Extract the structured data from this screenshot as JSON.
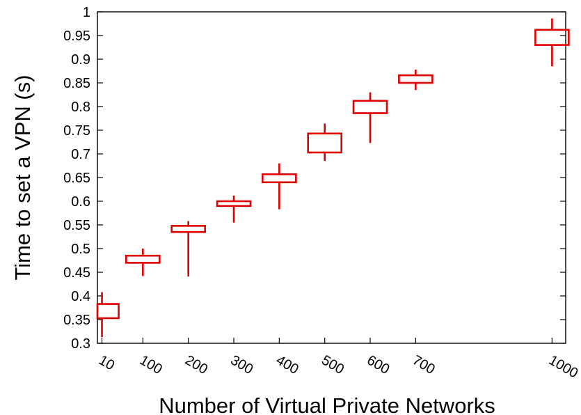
{
  "chart_data": {
    "type": "box",
    "xlabel": "Number of Virtual Private Networks",
    "ylabel": "Time to set a VPN (s)",
    "ylim": [
      0.3,
      1.0
    ],
    "yticks": [
      "0.3",
      "0.35",
      "0.4",
      "0.45",
      "0.5",
      "0.55",
      "0.6",
      "0.65",
      "0.7",
      "0.75",
      "0.8",
      "0.85",
      "0.9",
      "0.95",
      "1"
    ],
    "x_range": [
      0,
      1030
    ],
    "box_color": "#e00000",
    "grid": false,
    "boxes": [
      {
        "x": 10,
        "label": "10",
        "low": 0.313,
        "q1": 0.353,
        "q3": 0.383,
        "high": 0.408
      },
      {
        "x": 100,
        "label": "100",
        "low": 0.442,
        "q1": 0.47,
        "q3": 0.485,
        "high": 0.5
      },
      {
        "x": 200,
        "label": "200",
        "low": 0.441,
        "q1": 0.535,
        "q3": 0.548,
        "high": 0.558
      },
      {
        "x": 300,
        "label": "300",
        "low": 0.555,
        "q1": 0.59,
        "q3": 0.6,
        "high": 0.612
      },
      {
        "x": 400,
        "label": "400",
        "low": 0.583,
        "q1": 0.64,
        "q3": 0.657,
        "high": 0.68
      },
      {
        "x": 500,
        "label": "500",
        "low": 0.685,
        "q1": 0.703,
        "q3": 0.743,
        "high": 0.764
      },
      {
        "x": 600,
        "label": "600",
        "low": 0.723,
        "q1": 0.786,
        "q3": 0.812,
        "high": 0.83
      },
      {
        "x": 700,
        "label": "700",
        "low": 0.835,
        "q1": 0.85,
        "q3": 0.866,
        "high": 0.878
      },
      {
        "x": 1000,
        "label": "1000",
        "low": 0.885,
        "q1": 0.93,
        "q3": 0.962,
        "high": 0.986
      }
    ]
  }
}
